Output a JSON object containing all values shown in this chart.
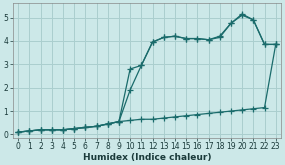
{
  "xlabel": "Humidex (Indice chaleur)",
  "ylabel": "",
  "bg_color": "#cce8e8",
  "grid_color": "#aacece",
  "line_color": "#1a6b6b",
  "xlim": [
    -0.5,
    23.5
  ],
  "ylim": [
    -0.15,
    5.6
  ],
  "xticks": [
    0,
    1,
    2,
    3,
    4,
    5,
    6,
    7,
    8,
    9,
    10,
    11,
    12,
    13,
    14,
    15,
    16,
    17,
    18,
    19,
    20,
    21,
    22,
    23
  ],
  "yticks": [
    0,
    1,
    2,
    3,
    4,
    5
  ],
  "line1_x": [
    0,
    1,
    2,
    3,
    4,
    5,
    6,
    7,
    8,
    9,
    10,
    11,
    12,
    13,
    14,
    15,
    16,
    17,
    18,
    19,
    20,
    21,
    22,
    23
  ],
  "line1_y": [
    0.1,
    0.15,
    0.2,
    0.2,
    0.2,
    0.25,
    0.3,
    0.35,
    0.45,
    0.55,
    0.6,
    0.65,
    0.65,
    0.7,
    0.75,
    0.8,
    0.85,
    0.9,
    0.95,
    1.0,
    1.05,
    1.1,
    1.15,
    3.85
  ],
  "line2_x": [
    0,
    1,
    2,
    3,
    4,
    5,
    6,
    7,
    8,
    9,
    10,
    11,
    12,
    13,
    14,
    15,
    16,
    17,
    18,
    19,
    20,
    21,
    22,
    23
  ],
  "line2_y": [
    0.1,
    0.15,
    0.2,
    0.2,
    0.2,
    0.25,
    0.3,
    0.35,
    0.45,
    0.55,
    1.9,
    2.95,
    3.95,
    4.15,
    4.2,
    4.1,
    4.1,
    4.05,
    4.2,
    4.75,
    5.1,
    4.9,
    3.85,
    3.85
  ],
  "line3_x": [
    0,
    1,
    2,
    3,
    4,
    5,
    6,
    7,
    8,
    9,
    10,
    11,
    12,
    13,
    14,
    15,
    16,
    17,
    18,
    19,
    20,
    21,
    22,
    23
  ],
  "line3_y": [
    0.1,
    0.15,
    0.2,
    0.2,
    0.2,
    0.25,
    0.3,
    0.35,
    0.45,
    0.55,
    2.8,
    2.95,
    3.95,
    4.15,
    4.2,
    4.1,
    4.1,
    4.05,
    4.15,
    4.75,
    5.15,
    4.9,
    3.85,
    3.85
  ],
  "marker": "+",
  "markersize": 4,
  "linewidth": 0.9
}
